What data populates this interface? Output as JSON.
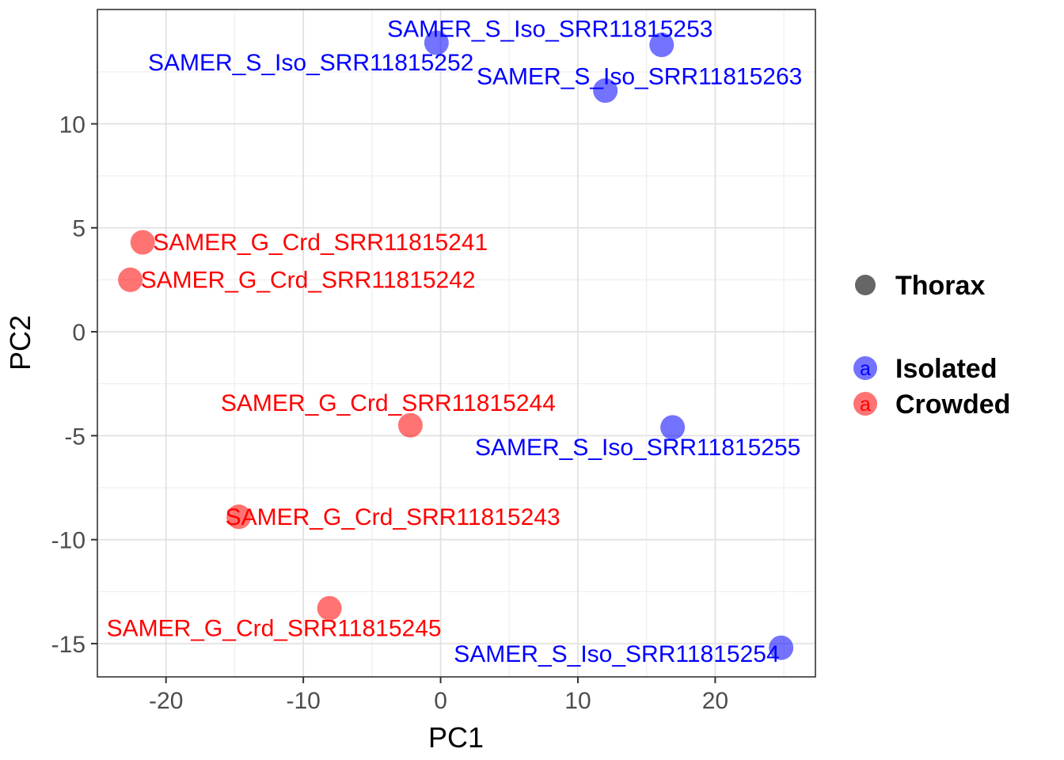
{
  "figure": {
    "background": "#FFFFFF"
  },
  "chart_data": {
    "type": "scatter",
    "title": "",
    "xlabel": "PC1",
    "ylabel": "PC2",
    "xlim": [
      -25.0,
      27.3
    ],
    "ylim": [
      -16.6,
      15.5
    ],
    "x_ticks": [
      -20,
      -10,
      0,
      10,
      20
    ],
    "x_minor_ticks": [
      -15,
      -5,
      5,
      15,
      25
    ],
    "y_ticks": [
      10,
      5,
      0,
      -5,
      -10,
      -15
    ],
    "y_minor_ticks": [
      12.5,
      7.5,
      2.5,
      -2.5,
      -7.5,
      -12.5
    ],
    "grid": "on",
    "legend_position": "right",
    "point_radius": 15.5,
    "colors": {
      "isolated": "#0000FF",
      "crowded": "#FF0000",
      "thorax_marker": "#666666",
      "major_grid": "#E2E2E2",
      "minor_grid": "#F0F0F0",
      "panel_border": "#333333",
      "tick_label": "#4D4D4D",
      "axis_title": "#000000"
    },
    "series": [
      {
        "name": "Isolated",
        "color": "#0000FF",
        "fill_opacity": 0.55,
        "points": [
          {
            "label": "SAMER_S_Iso_SRR11815252",
            "x": -0.3,
            "y": 13.9,
            "label_anchor": "end",
            "label_dx": 47,
            "label_dy": 35
          },
          {
            "label": "SAMER_S_Iso_SRR11815253",
            "x": 16.1,
            "y": 13.8,
            "label_anchor": "middle",
            "label_dx": -141,
            "label_dy": -10
          },
          {
            "label": "SAMER_S_Iso_SRR11815263",
            "x": 12.0,
            "y": 11.6,
            "label_anchor": "middle",
            "label_dx": 43,
            "label_dy": -8
          },
          {
            "label": "SAMER_S_Iso_SRR11815255",
            "x": 16.9,
            "y": -4.6,
            "label_anchor": "middle",
            "label_dx": -44,
            "label_dy": 35
          },
          {
            "label": "SAMER_S_Iso_SRR11815254",
            "x": 24.8,
            "y": -15.2,
            "label_anchor": "end",
            "label_dx": -2,
            "label_dy": 18
          }
        ]
      },
      {
        "name": "Crowded",
        "color": "#FF0000",
        "fill_opacity": 0.55,
        "points": [
          {
            "label": "SAMER_G_Crd_SRR11815241",
            "x": -21.7,
            "y": 4.3,
            "label_anchor": "start",
            "label_dx": 13,
            "label_dy": 10
          },
          {
            "label": "SAMER_G_Crd_SRR11815242",
            "x": -22.6,
            "y": 2.5,
            "label_anchor": "start",
            "label_dx": 13,
            "label_dy": 10
          },
          {
            "label": "SAMER_G_Crd_SRR11815244",
            "x": -2.2,
            "y": -4.5,
            "label_anchor": "middle",
            "label_dx": -28,
            "label_dy": -18
          },
          {
            "label": "SAMER_G_Crd_SRR11815243",
            "x": -14.7,
            "y": -8.9,
            "label_anchor": "start",
            "label_dx": -17,
            "label_dy": 10
          },
          {
            "label": "SAMER_G_Crd_SRR11815245",
            "x": -8.1,
            "y": -13.3,
            "label_anchor": "middle",
            "label_dx": -70,
            "label_dy": 35
          }
        ]
      }
    ],
    "legend": {
      "entries": [
        {
          "label": "Thorax",
          "marker": "dot",
          "marker_color": "#666666",
          "marker_text": ""
        },
        {
          "label": "Isolated",
          "marker": "a",
          "marker_color": "#0000FF",
          "marker_text": "a"
        },
        {
          "label": "Crowded",
          "marker": "a",
          "marker_color": "#FF0000",
          "marker_text": "a"
        }
      ]
    }
  }
}
